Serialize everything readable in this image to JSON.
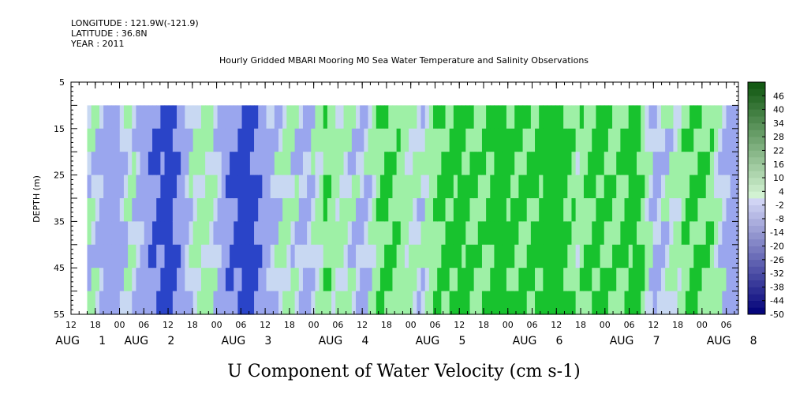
{
  "header": {
    "longitude": "LONGITUDE : 121.9W(-121.9)",
    "latitude": "LATITUDE : 36.8N",
    "year": "YEAR : 2011"
  },
  "chart_data": {
    "type": "heatmap",
    "title": "Hourly Gridded MBARI Mooring M0 Sea Water Temperature and Salinity Observations",
    "xlabel": "U Component of Water Velocity (cm s-1)",
    "ylabel": "DEPTH (m)",
    "y_ticks": [
      5,
      15,
      25,
      35,
      45,
      55
    ],
    "ylim": [
      5,
      55
    ],
    "y_inverted": true,
    "data_depth_range": [
      10,
      55
    ],
    "x_time_start": "2011-08-01 12:00",
    "x_time_end": "2011-08-08 09:00",
    "data_time_start": "2011-08-01 16:00",
    "hour_tick_labels": [
      "12",
      "18",
      "00",
      "06",
      "12",
      "18",
      "00",
      "06",
      "12",
      "18",
      "00",
      "06",
      "12",
      "18",
      "00",
      "06",
      "12",
      "18",
      "00",
      "06",
      "12",
      "18",
      "00",
      "06",
      "12",
      "18",
      "00",
      "06"
    ],
    "day_labels": [
      {
        "month": "AUG",
        "day": "1"
      },
      {
        "month": "AUG",
        "day": "2"
      },
      {
        "month": "AUG",
        "day": "3"
      },
      {
        "month": "AUG",
        "day": "4"
      },
      {
        "month": "AUG",
        "day": "5"
      },
      {
        "month": "AUG",
        "day": "6"
      },
      {
        "month": "AUG",
        "day": "7"
      },
      {
        "month": "AUG",
        "day": "8"
      }
    ],
    "colorbar_levels": [
      46,
      40,
      34,
      28,
      22,
      16,
      10,
      4,
      -2,
      -8,
      -14,
      -20,
      -26,
      -32,
      -38,
      -44,
      -50
    ],
    "colorbar_range": [
      -50,
      52
    ],
    "colors": {
      "negative_strong": "#2a44c8",
      "negative_weak": "#9aa6ee",
      "near_zero": "#c8d8f2",
      "positive_weak": "#9ef0a6",
      "positive_strong": "#18c22e"
    },
    "velocity_profile_by_time": [
      {
        "day": 1.0,
        "u": -10
      },
      {
        "day": 1.2,
        "u": 4
      },
      {
        "day": 1.4,
        "u": -14
      },
      {
        "day": 1.6,
        "u": 6
      },
      {
        "day": 1.8,
        "u": -18
      },
      {
        "day": 2.0,
        "u": -28
      },
      {
        "day": 2.2,
        "u": 2
      },
      {
        "day": 2.4,
        "u": 10
      },
      {
        "day": 2.6,
        "u": -16
      },
      {
        "day": 2.8,
        "u": -30
      },
      {
        "day": 3.0,
        "u": -8
      },
      {
        "day": 3.2,
        "u": 8
      },
      {
        "day": 3.4,
        "u": -6
      },
      {
        "day": 3.6,
        "u": 14
      },
      {
        "day": 3.8,
        "u": 4
      },
      {
        "day": 4.0,
        "u": -4
      },
      {
        "day": 4.2,
        "u": 20
      },
      {
        "day": 4.4,
        "u": 10
      },
      {
        "day": 4.6,
        "u": 2
      },
      {
        "day": 4.8,
        "u": 18
      },
      {
        "day": 5.0,
        "u": 22
      },
      {
        "day": 5.2,
        "u": 12
      },
      {
        "day": 5.4,
        "u": 24
      },
      {
        "day": 5.6,
        "u": 16
      },
      {
        "day": 5.8,
        "u": 20
      },
      {
        "day": 6.0,
        "u": 26
      },
      {
        "day": 6.2,
        "u": 8
      },
      {
        "day": 6.4,
        "u": 22
      },
      {
        "day": 6.6,
        "u": 12
      },
      {
        "day": 6.8,
        "u": 24
      },
      {
        "day": 7.0,
        "u": -6
      },
      {
        "day": 7.2,
        "u": 6
      },
      {
        "day": 7.4,
        "u": 18
      },
      {
        "day": 7.6,
        "u": 10
      },
      {
        "day": 7.8,
        "u": -12
      }
    ]
  }
}
